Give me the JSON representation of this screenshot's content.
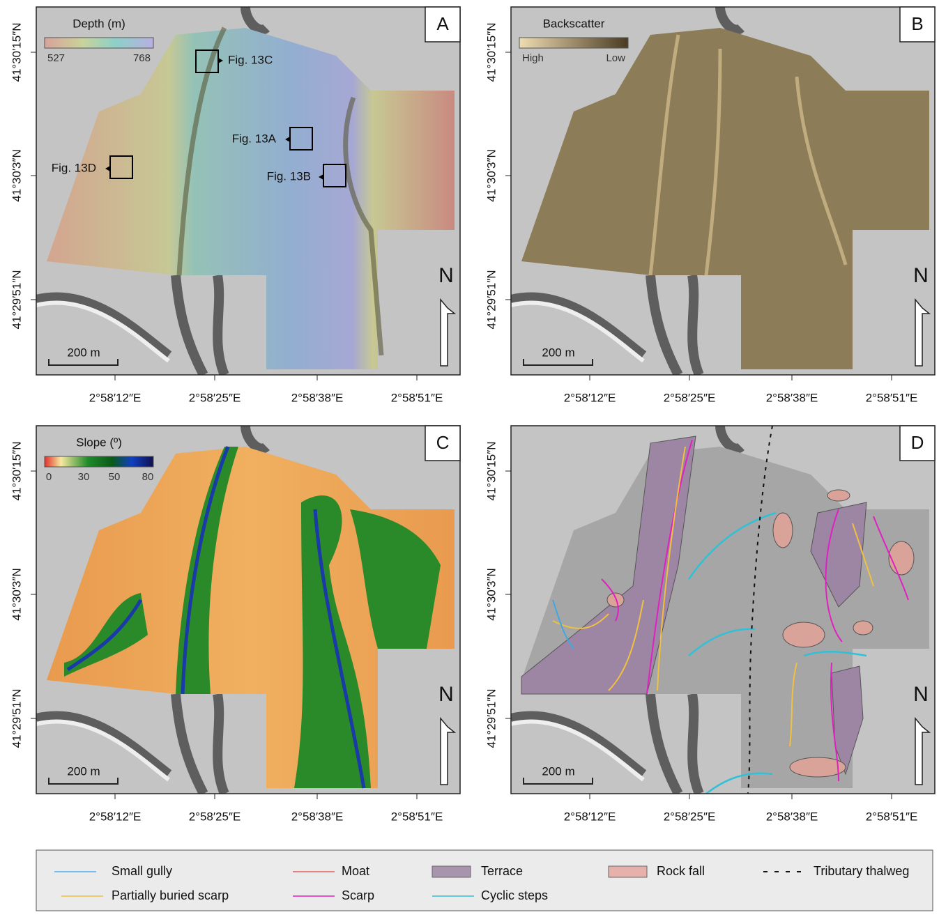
{
  "panels": [
    {
      "label": "A",
      "colorbar": {
        "title": "Depth (m)",
        "ticks": [
          "527",
          "768"
        ]
      },
      "figure_refs": [
        "Fig. 13C",
        "Fig. 13A",
        "Fig. 13B",
        "Fig. 13D"
      ],
      "scale_bar": "200 m",
      "north": "N",
      "x_labels": [
        "2°58′12″E",
        "2°58′25″E",
        "2°58′38″E",
        "2°58′51″E"
      ],
      "y_labels": [
        "41°30′15″N",
        "41°30′3″N",
        "41°29′51″N"
      ]
    },
    {
      "label": "B",
      "colorbar": {
        "title": "Backscatter",
        "ticks": [
          "High",
          "Low"
        ]
      },
      "figure_refs": [],
      "scale_bar": "200 m",
      "north": "N",
      "x_labels": [
        "2°58′12″E",
        "2°58′25″E",
        "2°58′38″E",
        "2°58′51″E"
      ],
      "y_labels": [
        "41°30′15″N",
        "41°30′3″N",
        "41°29′51″N"
      ]
    },
    {
      "label": "C",
      "colorbar": {
        "title": "Slope (º)",
        "ticks": [
          "0",
          "30",
          "50",
          "80"
        ]
      },
      "figure_refs": [],
      "scale_bar": "200 m",
      "north": "N",
      "x_labels": [
        "2°58′12″E",
        "2°58′25″E",
        "2°58′38″E",
        "2°58′51″E"
      ],
      "y_labels": [
        "41°30′15″N",
        "41°30′3″N",
        "41°29′51″N"
      ]
    },
    {
      "label": "D",
      "colorbar": null,
      "figure_refs": [],
      "scale_bar": "200 m",
      "north": "N",
      "x_labels": [
        "2°58′12″E",
        "2°58′25″E",
        "2°58′38″E",
        "2°58′51″E"
      ],
      "y_labels": [
        "41°30′15″N",
        "41°30′3″N",
        "41°29′51″N"
      ]
    }
  ],
  "legend": [
    "Small gully",
    "Moat",
    "Terrace",
    "Rock fall",
    "Tributary thalweg",
    "Partially buried scarp",
    "Scarp",
    "Cyclic steps"
  ]
}
